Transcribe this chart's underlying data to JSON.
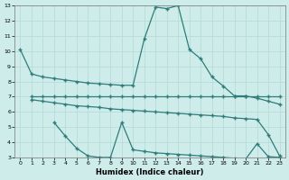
{
  "bg_color": "#ceecea",
  "line_color": "#2e7d7a",
  "grid_color": "#b8dbd9",
  "xlabel": "Humidex (Indice chaleur)",
  "xlim": [
    -0.5,
    23.5
  ],
  "ylim": [
    3,
    13
  ],
  "xticks": [
    0,
    1,
    2,
    3,
    4,
    5,
    6,
    7,
    8,
    9,
    10,
    11,
    12,
    13,
    14,
    15,
    16,
    17,
    18,
    19,
    20,
    21,
    22,
    23
  ],
  "yticks": [
    3,
    4,
    5,
    6,
    7,
    8,
    9,
    10,
    11,
    12,
    13
  ],
  "line1_x": [
    0,
    1,
    2,
    3,
    4,
    5,
    6,
    7,
    8,
    9,
    10,
    11,
    12,
    13,
    14,
    15,
    16,
    17,
    18,
    19,
    20,
    21,
    22,
    23
  ],
  "line1_y": [
    10.1,
    8.5,
    8.3,
    8.2,
    8.1,
    8.0,
    7.9,
    7.85,
    7.8,
    7.75,
    7.75,
    10.8,
    12.9,
    12.8,
    13.0,
    10.1,
    9.5,
    8.3,
    7.7,
    7.05,
    7.05,
    6.9,
    6.7,
    6.5
  ],
  "line2_x": [
    1,
    2,
    3,
    4,
    5,
    6,
    7,
    8,
    9,
    10,
    11,
    12,
    13,
    14,
    15,
    16,
    17,
    18,
    19,
    20,
    21,
    22,
    23
  ],
  "line2_y": [
    7.0,
    7.0,
    7.0,
    7.0,
    7.0,
    7.0,
    7.0,
    7.0,
    7.0,
    7.0,
    7.0,
    7.0,
    7.0,
    7.0,
    7.0,
    7.0,
    7.0,
    7.0,
    7.0,
    7.0,
    7.0,
    7.0,
    7.0
  ],
  "line3_x": [
    1,
    2,
    3,
    4,
    5,
    6,
    7,
    8,
    9,
    10,
    11,
    12,
    13,
    14,
    15,
    16,
    17,
    18,
    19,
    20,
    21,
    22,
    23
  ],
  "line3_y": [
    6.8,
    6.7,
    6.6,
    6.5,
    6.4,
    6.35,
    6.3,
    6.2,
    6.15,
    6.1,
    6.05,
    6.0,
    5.95,
    5.9,
    5.85,
    5.8,
    5.75,
    5.7,
    5.6,
    5.55,
    5.5,
    4.5,
    3.1
  ],
  "line4_x": [
    3,
    4,
    5,
    6,
    7,
    8,
    9,
    10,
    11,
    12,
    13,
    14,
    15,
    16,
    17,
    18,
    19,
    20,
    21,
    22,
    23
  ],
  "line4_y": [
    5.3,
    4.4,
    3.6,
    3.1,
    3.0,
    3.0,
    5.3,
    3.5,
    3.4,
    3.3,
    3.25,
    3.2,
    3.15,
    3.1,
    3.05,
    3.0,
    2.95,
    2.9,
    3.9,
    3.05,
    3.0
  ]
}
